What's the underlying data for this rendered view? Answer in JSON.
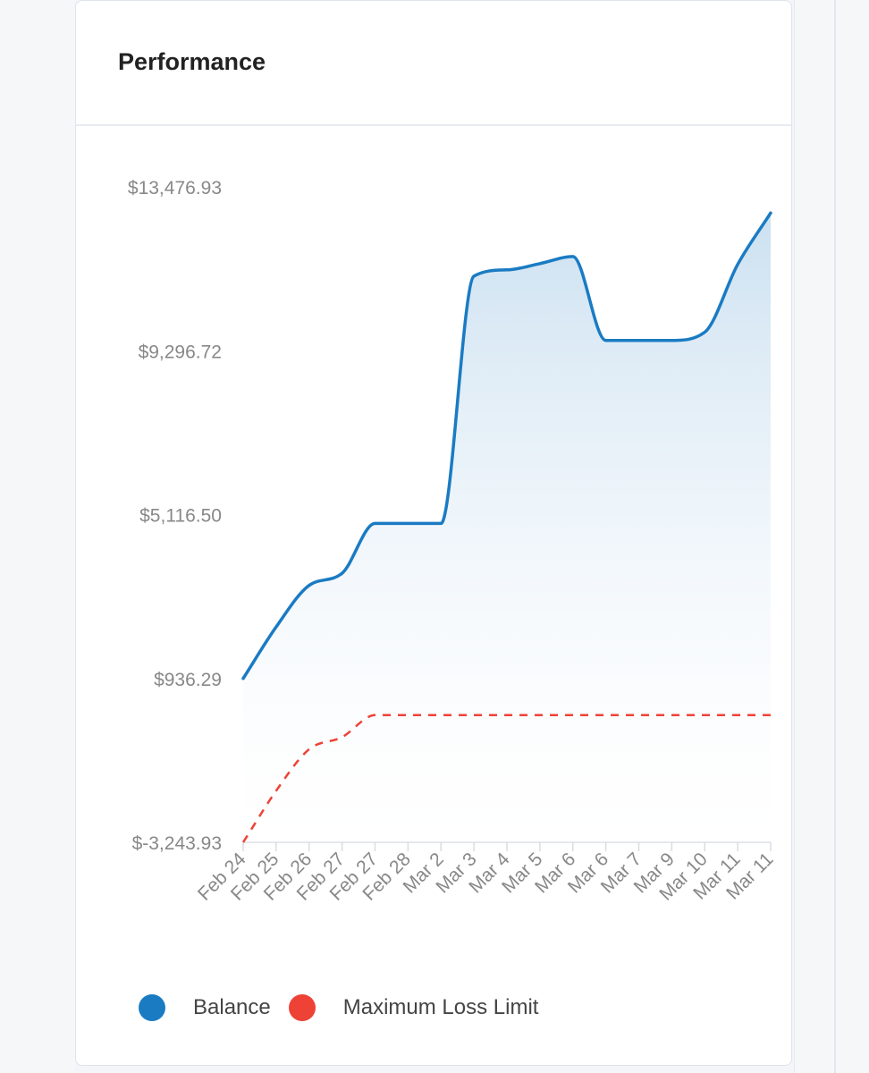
{
  "card": {
    "title": "Performance"
  },
  "colors": {
    "balance": "#1a7bc3",
    "loss_limit": "#ee4236",
    "tick_text": "#888888"
  },
  "chart_data": {
    "type": "line",
    "title": "Performance",
    "categories": [
      "Feb 24",
      "Feb 25",
      "Feb 26",
      "Feb 27",
      "Feb 27",
      "Feb 28",
      "Mar 2",
      "Mar 3",
      "Mar 4",
      "Mar 5",
      "Mar 6",
      "Mar 6",
      "Mar 7",
      "Mar 9",
      "Mar 10",
      "Mar 11",
      "Mar 11"
    ],
    "y_ticks": [
      "$13,476.93",
      "$9,296.72",
      "$5,116.50",
      "$936.29",
      "$-3,243.93"
    ],
    "ylim": [
      -3243.93,
      13476.93
    ],
    "series": [
      {
        "name": "Balance",
        "color": "#1a7bc3",
        "style": "solid",
        "fill": true,
        "values": [
          936.29,
          2250,
          3310,
          3620,
          4890,
          4890,
          4890,
          11200,
          11360,
          11520,
          11700,
          9560,
          9560,
          9560,
          9770,
          11500,
          12810
        ]
      },
      {
        "name": "Maximum Loss Limit",
        "color": "#ee4236",
        "style": "dashed",
        "fill": false,
        "values": [
          -3243.93,
          -1930,
          -870,
          -560,
          0,
          0,
          0,
          0,
          0,
          0,
          0,
          0,
          0,
          0,
          0,
          0,
          0
        ]
      }
    ],
    "legend": [
      "Balance",
      "Maximum Loss Limit"
    ],
    "legend_position": "bottom"
  }
}
